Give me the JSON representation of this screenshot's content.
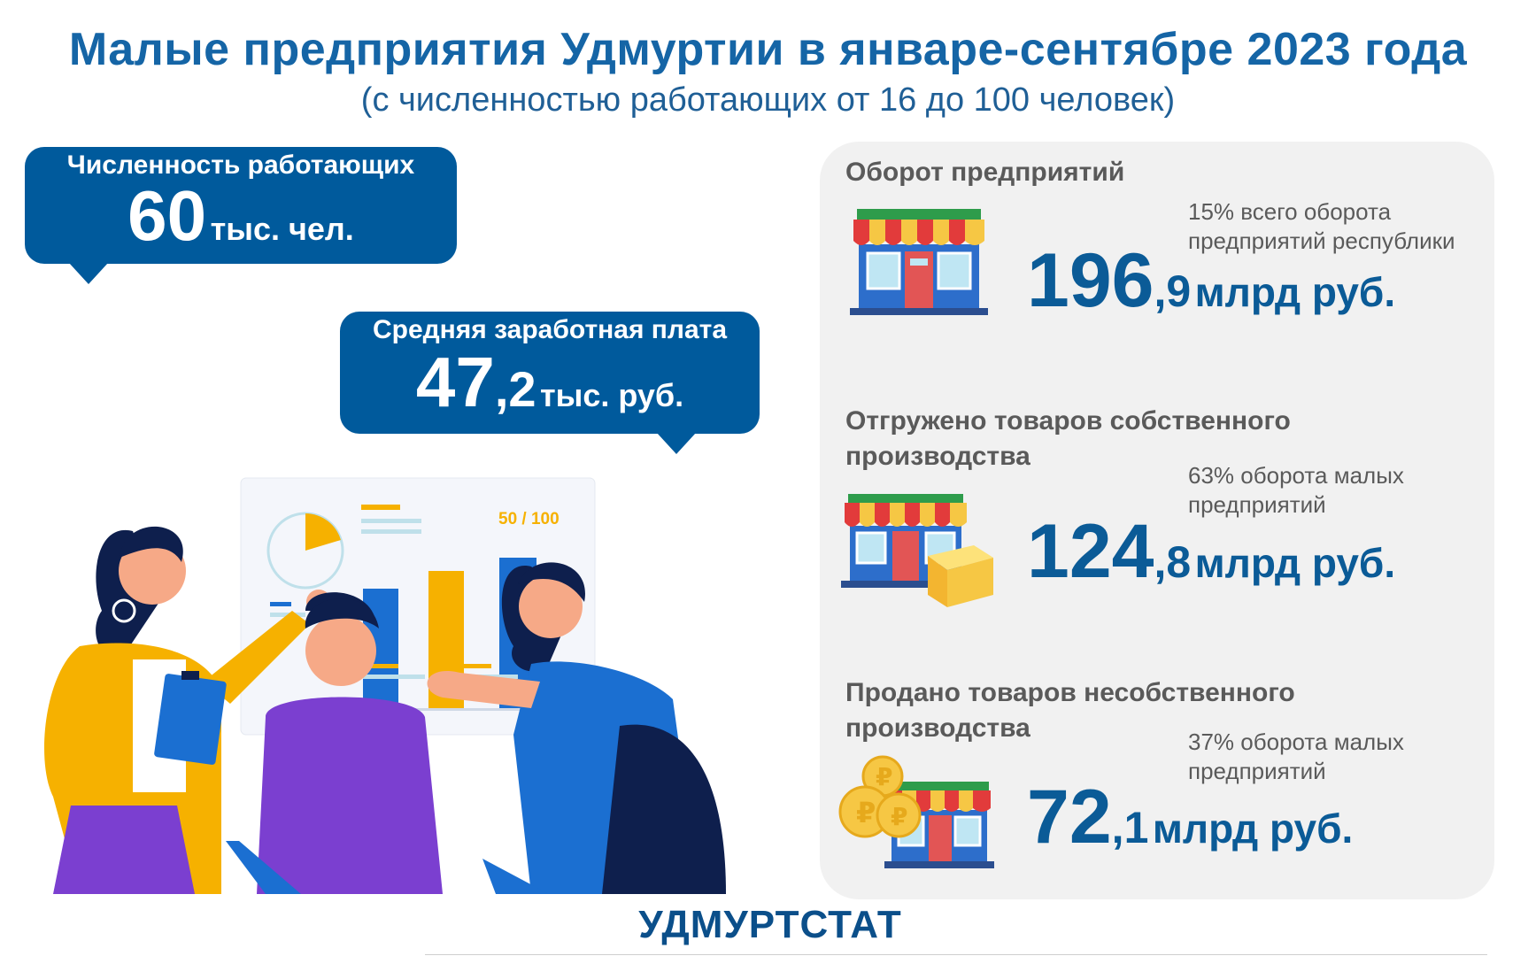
{
  "title": "Малые предприятия Удмуртии в январе-сентябре 2023 года",
  "subtitle": "(с численностью работающих от 16 до 100 человек)",
  "employees": {
    "label": "Численность работающих",
    "value_int": "60",
    "unit": "тыс. чел."
  },
  "salary": {
    "label": "Средняя заработная плата",
    "value_int": "47",
    "value_dec": ",2",
    "unit": "тыс. руб."
  },
  "turnover": {
    "heading": "Оборот предприятий",
    "note_line1": "15% всего оборота",
    "note_line2": "предприятий республики",
    "value_int": "196",
    "value_dec": ",9",
    "unit": "млрд руб."
  },
  "shipped": {
    "heading_line1": "Отгружено товаров собственного",
    "heading_line2": "производства",
    "note_line1": "63% оборота малых",
    "note_line2": "предприятий",
    "value_int": "124",
    "value_dec": ",8",
    "unit": "млрд руб."
  },
  "sold": {
    "heading_line1": "Продано товаров несобственного",
    "heading_line2": "производства",
    "note_line1": "37% оборота малых",
    "note_line2": "предприятий",
    "value_int": "72",
    "value_dec": ",1",
    "unit": "млрд руб."
  },
  "board": {
    "label": "50 / 100"
  },
  "footer": "УДМУРТСТАТ",
  "colors": {
    "primary": "#005a9c",
    "accent": "#f6b100",
    "panel": "#f1f1f1"
  },
  "icons": [
    "shop-icon",
    "shop-with-box-icon",
    "shop-with-coins-icon",
    "office-team-illustration"
  ]
}
